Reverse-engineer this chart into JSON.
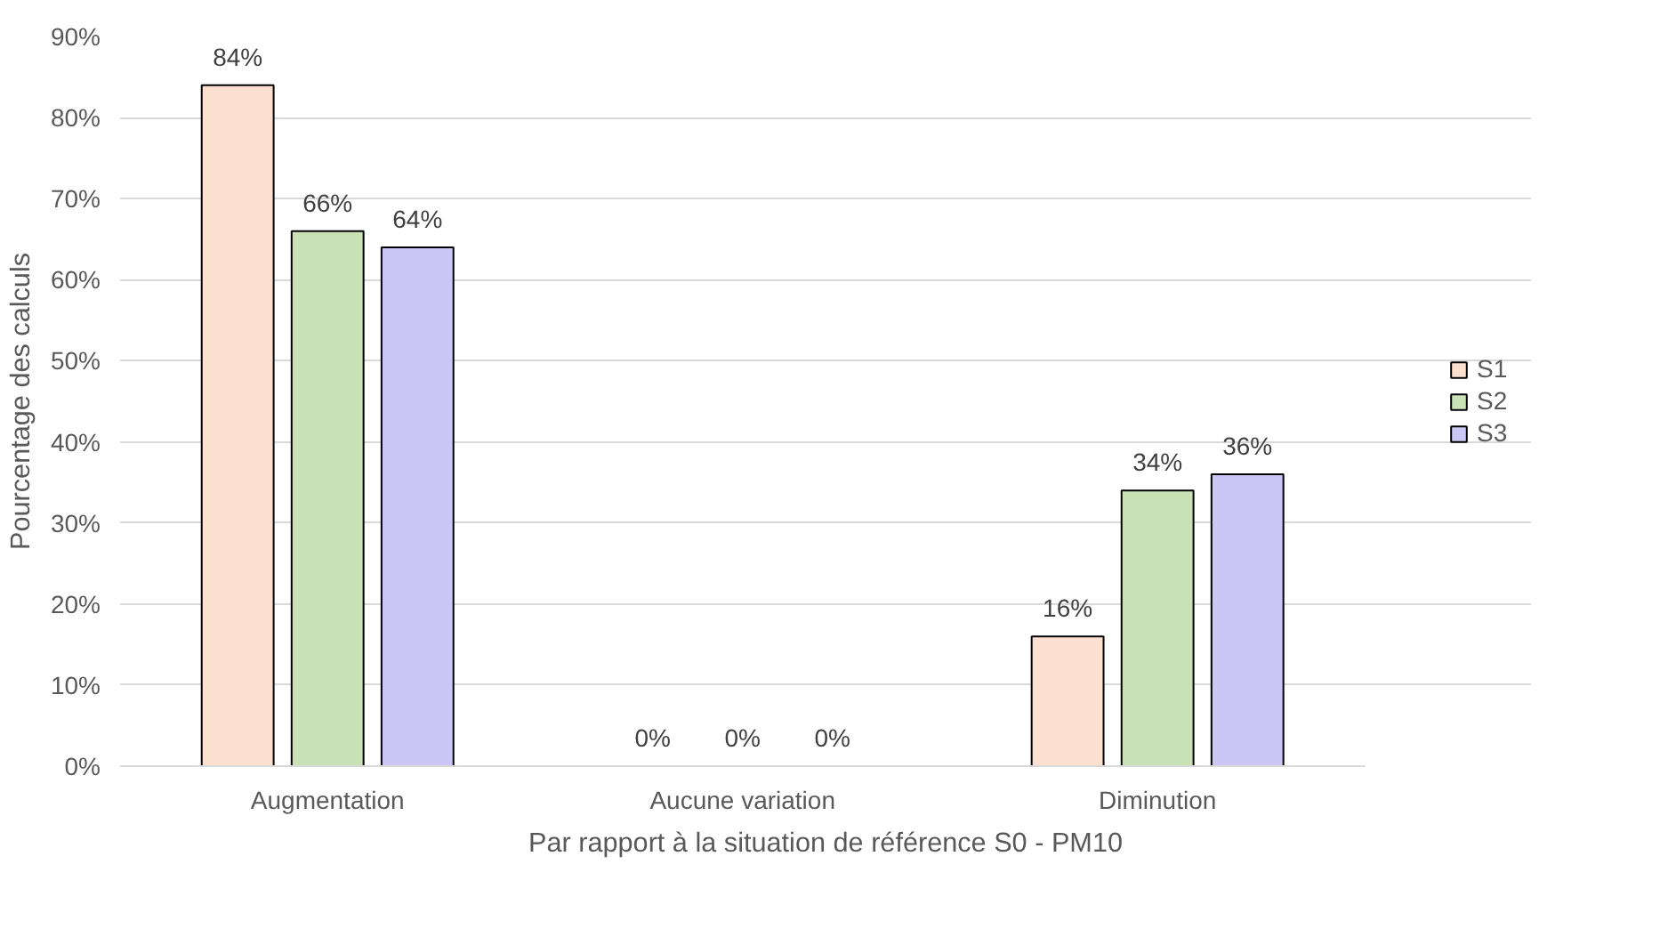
{
  "chart_data": {
    "type": "bar",
    "xlabel": "Par rapport à la situation de référence S0 - PM10",
    "ylabel": "Pourcentage des calculs",
    "categories": [
      "Augmentation",
      "Aucune variation",
      "Diminution"
    ],
    "series": [
      {
        "name": "S1",
        "color": "#fbe0d0",
        "values": [
          84,
          0,
          16
        ],
        "value_labels": [
          "84%",
          "0%",
          "16%"
        ]
      },
      {
        "name": "S2",
        "color": "#c8e2b6",
        "values": [
          66,
          0,
          34
        ],
        "value_labels": [
          "66%",
          "0%",
          "34%"
        ]
      },
      {
        "name": "S3",
        "color": "#ccc6f7",
        "values": [
          64,
          0,
          36
        ],
        "value_labels": [
          "64%",
          "0%",
          "36%"
        ]
      }
    ],
    "ylim": [
      0,
      90
    ],
    "yticks": [
      {
        "value": 0,
        "label": "0%"
      },
      {
        "value": 10,
        "label": "10%"
      },
      {
        "value": 20,
        "label": "20%"
      },
      {
        "value": 30,
        "label": "30%"
      },
      {
        "value": 40,
        "label": "40%"
      },
      {
        "value": 50,
        "label": "50%"
      },
      {
        "value": 60,
        "label": "60%"
      },
      {
        "value": 70,
        "label": "70%"
      },
      {
        "value": 80,
        "label": "80%"
      },
      {
        "value": 90,
        "label": "90%"
      }
    ],
    "grid": "y",
    "legend": "right"
  }
}
